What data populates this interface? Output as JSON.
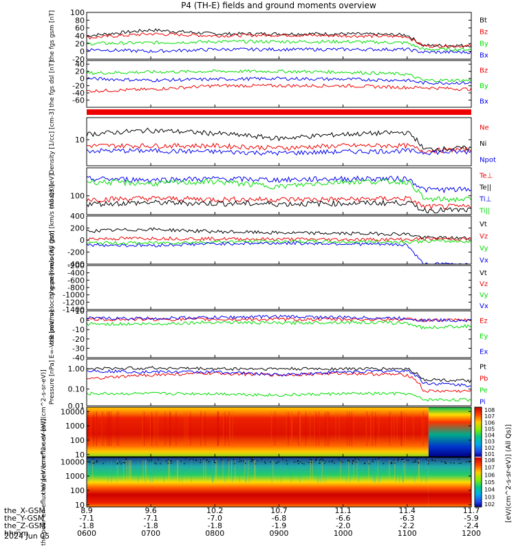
{
  "title": "P4 (TH-E) fields and ground moments overview",
  "colors": {
    "black": "#000000",
    "red": "#ee0000",
    "green": "#00dd00",
    "blue": "#0000ee"
  },
  "time_axis": {
    "x_range": [
      "0600",
      "1200"
    ],
    "rows": [
      {
        "name": "the_X-GSM",
        "values": [
          "8.9",
          "9.6",
          "10.2",
          "10.7",
          "11.1",
          "11.4",
          "11.7"
        ]
      },
      {
        "name": "the_Y-GSM",
        "values": [
          "-7.1",
          "-7.1",
          "-7.0",
          "-6.8",
          "-6.6",
          "-6.3",
          "-5.9"
        ]
      },
      {
        "name": "the_Z-GSM",
        "values": [
          "-1.8",
          "-1.8",
          "-1.8",
          "-1.9",
          "-2.0",
          "-2.2",
          "-2.4"
        ]
      },
      {
        "name": "hhmm",
        "values": [
          "0600",
          "0700",
          "0800",
          "0900",
          "1000",
          "1100",
          "1200"
        ]
      }
    ],
    "date": "2024 Jun 05"
  },
  "colorbar": {
    "label": "[eV/(cm^2-s-sr-eV)] (All Qs)]",
    "ticks_top": [
      "10^8",
      "10^7",
      "10^6",
      "10^5",
      "10^4",
      "10^3",
      "10^2",
      "10^1"
    ],
    "ticks_bottom": [
      "10^8",
      "10^7",
      "10^6",
      "10^5",
      "10^4",
      "10^3",
      "10^2"
    ]
  },
  "chart_data": [
    {
      "type": "line",
      "ylabel": "the fgs gsm [nT]",
      "ylim": [
        -20,
        100
      ],
      "yticks": [
        "100",
        "80",
        "60",
        "40",
        "20",
        "0",
        "-20"
      ],
      "series": [
        {
          "name": "Bt",
          "color": "#000000",
          "x": [
            "0600",
            "0700",
            "0800",
            "0900",
            "1000",
            "1100",
            "1115",
            "1200"
          ],
          "values": [
            40,
            55,
            45,
            45,
            45,
            42,
            15,
            15
          ]
        },
        {
          "name": "Bz",
          "color": "#ee0000",
          "x": [
            "0600",
            "0700",
            "0800",
            "0900",
            "1000",
            "1100",
            "1115",
            "1200"
          ],
          "values": [
            35,
            45,
            40,
            42,
            40,
            38,
            14,
            14
          ]
        },
        {
          "name": "By",
          "color": "#00dd00",
          "x": [
            "0600",
            "0700",
            "0800",
            "0900",
            "1000",
            "1100",
            "1115",
            "1200"
          ],
          "values": [
            20,
            22,
            25,
            25,
            25,
            22,
            5,
            5
          ]
        },
        {
          "name": "Bx",
          "color": "#0000ee",
          "x": [
            "0600",
            "0700",
            "0800",
            "0900",
            "1000",
            "1100",
            "1115",
            "1200"
          ],
          "values": [
            5,
            0,
            5,
            5,
            5,
            5,
            -2,
            -2
          ]
        }
      ]
    },
    {
      "type": "line",
      "ylabel": "the fgs dsl [nT]",
      "ylim": [
        -80,
        50
      ],
      "yticks": [
        "40",
        "20",
        "0",
        "-20",
        "-40",
        "-60"
      ],
      "series": [
        {
          "name": "Bz",
          "color": "#ee0000",
          "x": [
            "0600",
            "0700",
            "0800",
            "0900",
            "1000",
            "1100",
            "1115",
            "1200"
          ],
          "values": [
            -35,
            -30,
            -20,
            -20,
            -20,
            -25,
            -25,
            -30
          ]
        },
        {
          "name": "By",
          "color": "#00dd00",
          "x": [
            "0600",
            "0700",
            "0800",
            "0900",
            "1000",
            "1100",
            "1115",
            "1200"
          ],
          "values": [
            15,
            18,
            20,
            20,
            18,
            12,
            -5,
            -5
          ]
        },
        {
          "name": "Bx",
          "color": "#0000ee",
          "x": [
            "0600",
            "0700",
            "0800",
            "0900",
            "1000",
            "1100",
            "1115",
            "1200"
          ],
          "values": [
            0,
            -5,
            -2,
            0,
            -2,
            -5,
            -12,
            -12
          ]
        }
      ]
    },
    {
      "type": "line",
      "ylabel": "Density [1/cc] [cm-3]",
      "ylim": [
        1.5,
        50
      ],
      "log": true,
      "yticks": [
        "10"
      ],
      "series": [
        {
          "name": "Ne",
          "color": "#ee0000",
          "x": [
            "0600",
            "0700",
            "0800",
            "0900",
            "1000",
            "1100",
            "1115",
            "1200"
          ],
          "values": [
            6.5,
            6.5,
            6.5,
            5.5,
            6.5,
            6.5,
            4.5,
            5
          ]
        },
        {
          "name": "Ni",
          "color": "#000000",
          "x": [
            "0600",
            "0700",
            "0800",
            "0900",
            "1000",
            "1100",
            "1115",
            "1200"
          ],
          "values": [
            15,
            20,
            16,
            11,
            15,
            17,
            5,
            5.5
          ]
        },
        {
          "name": "Npot",
          "color": "#0000ee",
          "x": [
            "0600",
            "0700",
            "0800",
            "0900",
            "1000",
            "1100",
            "1115",
            "1200"
          ],
          "values": [
            4.5,
            4.5,
            4.2,
            3.8,
            4.2,
            4.5,
            4,
            4.2
          ]
        }
      ]
    },
    {
      "type": "line",
      "ylabel": "moat3 [eV]",
      "ylim": [
        30,
        600
      ],
      "log": true,
      "yticks": [
        "100"
      ],
      "series": [
        {
          "name": "Te⊥",
          "color": "#ee0000",
          "x": [
            "0600",
            "0700",
            "0800",
            "0900",
            "1000",
            "1100",
            "1115",
            "1200"
          ],
          "values": [
            80,
            85,
            80,
            80,
            80,
            85,
            50,
            50
          ]
        },
        {
          "name": "Te||",
          "color": "#000000",
          "x": [
            "0600",
            "0700",
            "0800",
            "0900",
            "1000",
            "1100",
            "1115",
            "1200"
          ],
          "values": [
            60,
            65,
            62,
            60,
            62,
            65,
            40,
            40
          ]
        },
        {
          "name": "Ti⊥",
          "color": "#0000ee",
          "x": [
            "0600",
            "0700",
            "0800",
            "0900",
            "1000",
            "1100",
            "1115",
            "1200"
          ],
          "values": [
            300,
            280,
            300,
            280,
            300,
            300,
            150,
            150
          ]
        },
        {
          "name": "Ti||",
          "color": "#00dd00",
          "x": [
            "0600",
            "0700",
            "0800",
            "0900",
            "1000",
            "1100",
            "1115",
            "1200"
          ],
          "values": [
            250,
            220,
            250,
            180,
            250,
            250,
            80,
            80
          ]
        }
      ]
    },
    {
      "type": "line",
      "ylabel": "the peir velocity gsm [km/s (All Qs)]",
      "ylim": [
        -400,
        400
      ],
      "yticks": [
        "400",
        "200",
        "0",
        "-200",
        "-400"
      ],
      "series": [
        {
          "name": "Vt",
          "color": "#000000",
          "x": [
            "0600",
            "0700",
            "0800",
            "0900",
            "1000",
            "1100",
            "1115",
            "1200"
          ],
          "values": [
            150,
            180,
            140,
            120,
            110,
            100,
            40,
            30
          ]
        },
        {
          "name": "Vz",
          "color": "#ee0000",
          "x": [
            "0600",
            "0700",
            "0800",
            "0900",
            "1000",
            "1100",
            "1115",
            "1200"
          ],
          "values": [
            20,
            30,
            20,
            15,
            10,
            10,
            20,
            20
          ]
        },
        {
          "name": "Vy",
          "color": "#00dd00",
          "x": [
            "0600",
            "0700",
            "0800",
            "0900",
            "1000",
            "1100",
            "1115",
            "1200"
          ],
          "values": [
            -50,
            -50,
            -30,
            -20,
            -30,
            -30,
            -20,
            -20
          ]
        },
        {
          "name": "Vx",
          "color": "#0000ee",
          "x": [
            "0600",
            "0700",
            "0800",
            "0900",
            "1000",
            "1100",
            "1115",
            "1200"
          ],
          "values": [
            -80,
            -90,
            -60,
            -50,
            -60,
            -80,
            -400,
            -400
          ]
        }
      ]
    },
    {
      "type": "line",
      "ylabel": "the peer velocity gsm [km/s (All Qs)]",
      "ylim": [
        -1400,
        -200
      ],
      "yticks": [
        "-200",
        "-400",
        "-600",
        "-800",
        "-1000",
        "-1200",
        "-1400"
      ],
      "series": [
        {
          "name": "Vt",
          "color": "#000000",
          "values": []
        },
        {
          "name": "Vz",
          "color": "#ee0000",
          "values": []
        },
        {
          "name": "Vy",
          "color": "#00dd00",
          "values": []
        },
        {
          "name": "Vx",
          "color": "#0000ee",
          "values": []
        }
      ]
    },
    {
      "type": "line",
      "ylabel": "E=-VxB [mV/m]",
      "ylim": [
        -40,
        10
      ],
      "yticks": [
        "10",
        "0",
        "-10",
        "-20",
        "-30",
        "-40"
      ],
      "series": [
        {
          "name": "Ez",
          "color": "#ee0000",
          "x": [
            "0600",
            "0700",
            "0800",
            "0900",
            "1000",
            "1100",
            "1115",
            "1200"
          ],
          "values": [
            1,
            1,
            1,
            1,
            1,
            1,
            0,
            0
          ]
        },
        {
          "name": "Ey",
          "color": "#00dd00",
          "x": [
            "0600",
            "0700",
            "0800",
            "0900",
            "1000",
            "1100",
            "1115",
            "1200"
          ],
          "values": [
            -4,
            -4,
            -2,
            -3,
            -2,
            -3,
            -8,
            -6
          ]
        },
        {
          "name": "Ex",
          "color": "#0000ee",
          "x": [
            "0600",
            "0700",
            "0800",
            "0900",
            "1000",
            "1100",
            "1115",
            "1200"
          ],
          "values": [
            2,
            2,
            3,
            4,
            3,
            2,
            0,
            0
          ]
        }
      ]
    },
    {
      "type": "line",
      "ylabel": "Pressure [nPa]",
      "ylim": [
        0.015,
        3
      ],
      "log": true,
      "yticks": [
        "1.00",
        "0.10",
        "0.01"
      ],
      "series": [
        {
          "name": "Pt",
          "color": "#000000",
          "x": [
            "0600",
            "0700",
            "0800",
            "0900",
            "1000",
            "1100",
            "1115",
            "1200"
          ],
          "values": [
            1.0,
            1.1,
            1.0,
            1.0,
            1.0,
            1.0,
            0.3,
            0.25
          ]
        },
        {
          "name": "Pb",
          "color": "#ee0000",
          "x": [
            "0600",
            "0700",
            "0800",
            "0900",
            "1000",
            "1100",
            "1115",
            "1200"
          ],
          "values": [
            0.3,
            0.5,
            0.6,
            0.5,
            0.6,
            0.5,
            0.08,
            0.08
          ]
        },
        {
          "name": "Pe",
          "color": "#00dd00",
          "x": [
            "0600",
            "0700",
            "0800",
            "0900",
            "1000",
            "1100",
            "1115",
            "1200"
          ],
          "values": [
            0.06,
            0.06,
            0.06,
            0.05,
            0.06,
            0.06,
            0.03,
            0.03
          ]
        },
        {
          "name": "Pi",
          "color": "#0000ee",
          "x": [
            "0600",
            "0700",
            "0800",
            "0900",
            "1000",
            "1100",
            "1115",
            "1200"
          ],
          "values": [
            0.8,
            0.7,
            0.7,
            0.5,
            0.7,
            0.8,
            0.2,
            0.15
          ]
        }
      ]
    },
    {
      "type": "heatmap",
      "ylabel": "the peir en eflux eV [eV/(cm^2-s-sr-eV)]",
      "ylim": [
        7,
        20000
      ],
      "log": true,
      "yticks": [
        "10000",
        "1000",
        "100",
        "10"
      ]
    },
    {
      "type": "heatmap",
      "ylabel": "the peer en eflux eV [eV/(cm^2-s-sr-eV)]",
      "ylim": [
        7,
        20000
      ],
      "log": true,
      "yticks": [
        "10000",
        "1000",
        "100",
        "10"
      ]
    }
  ]
}
